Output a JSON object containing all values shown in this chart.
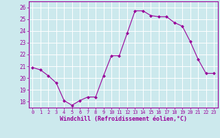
{
  "x": [
    0,
    1,
    2,
    3,
    4,
    5,
    6,
    7,
    8,
    9,
    10,
    11,
    12,
    13,
    14,
    15,
    16,
    17,
    18,
    19,
    20,
    21,
    22,
    23
  ],
  "y": [
    20.9,
    20.7,
    20.2,
    19.6,
    18.1,
    17.7,
    18.1,
    18.4,
    18.4,
    20.2,
    21.9,
    21.9,
    23.8,
    25.7,
    25.7,
    25.3,
    25.2,
    25.2,
    24.7,
    24.4,
    23.1,
    21.6,
    20.4,
    20.4
  ],
  "line_color": "#990099",
  "marker": "D",
  "marker_size": 2,
  "bg_color": "#cce9ed",
  "grid_color": "#b0d8de",
  "xlabel": "Windchill (Refroidissement éolien,°C)",
  "tick_color": "#990099",
  "ylim": [
    17.5,
    26.5
  ],
  "xlim": [
    -0.5,
    23.5
  ],
  "yticks": [
    18,
    19,
    20,
    21,
    22,
    23,
    24,
    25,
    26
  ],
  "xticks": [
    0,
    1,
    2,
    3,
    4,
    5,
    6,
    7,
    8,
    9,
    10,
    11,
    12,
    13,
    14,
    15,
    16,
    17,
    18,
    19,
    20,
    21,
    22,
    23
  ],
  "xtick_labels": [
    "0",
    "1",
    "2",
    "3",
    "4",
    "5",
    "6",
    "7",
    "8",
    "9",
    "10",
    "11",
    "12",
    "13",
    "14",
    "15",
    "16",
    "17",
    "18",
    "19",
    "20",
    "21",
    "22",
    "23"
  ],
  "spine_color": "#990099"
}
